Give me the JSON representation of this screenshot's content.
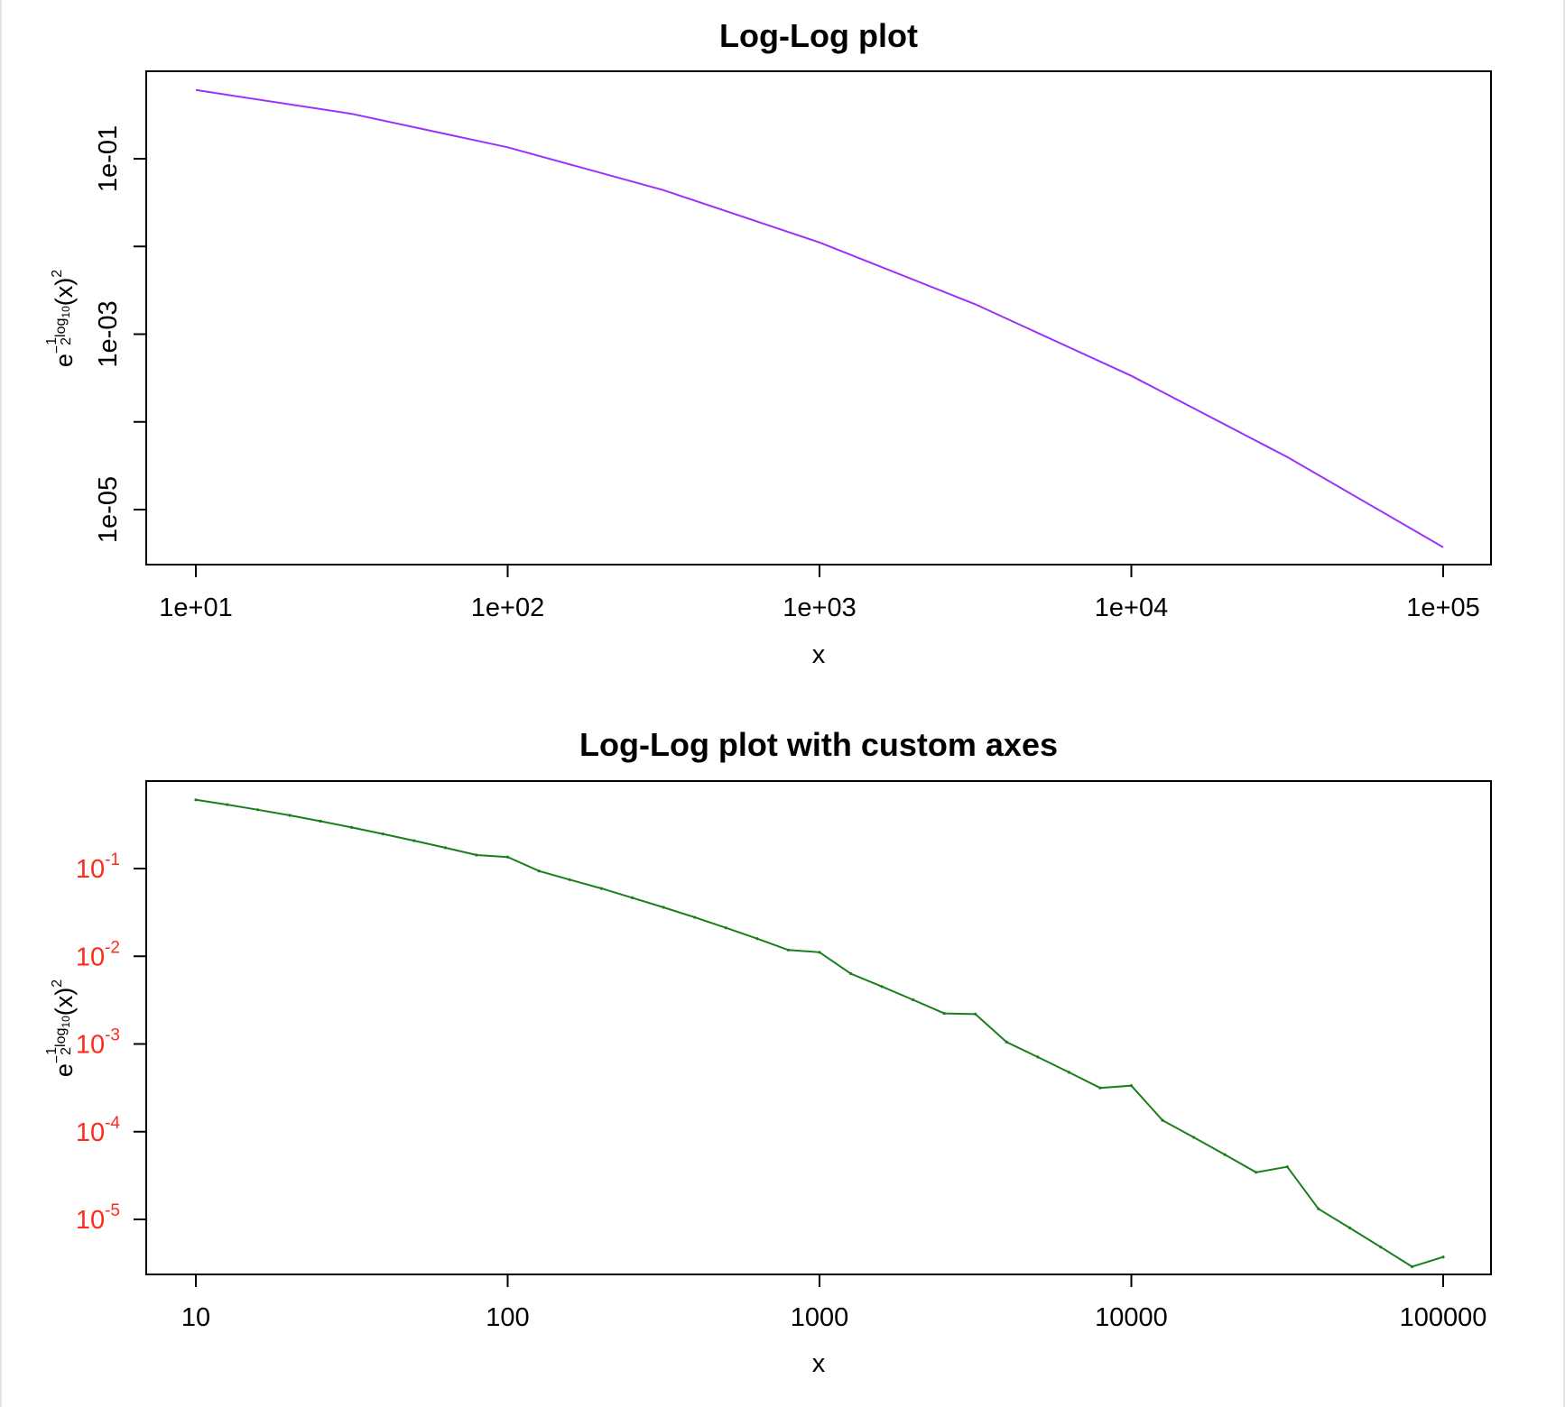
{
  "colors": {
    "top_series": "#9b30ff",
    "bottom_series": "#1a7f1a",
    "bottom_ytick": "#ff2a1a"
  },
  "chart_data": [
    {
      "type": "line",
      "title": "Log-Log plot",
      "xlabel": "x",
      "ylabel": {
        "base": "e",
        "minus": "−",
        "frac_num": "1",
        "frac_den": "2",
        "log": "log",
        "sub": "10",
        "arg": "(x)",
        "sup": "2"
      },
      "x_scale": "log",
      "y_scale": "log",
      "xlim": [
        10,
        100000
      ],
      "ylim": [
        2.5e-06,
        1
      ],
      "x_ticks": [
        {
          "value": 10,
          "label": "1e+01"
        },
        {
          "value": 100,
          "label": "1e+02"
        },
        {
          "value": 1000,
          "label": "1e+03"
        },
        {
          "value": 10000,
          "label": "1e+04"
        },
        {
          "value": 100000,
          "label": "1e+05"
        }
      ],
      "y_ticks": [
        {
          "value": 0.1,
          "label": "1e-01"
        },
        {
          "value": 0.01,
          "label": ""
        },
        {
          "value": 0.001,
          "label": "1e-03"
        },
        {
          "value": 0.0001,
          "label": ""
        },
        {
          "value": 1e-05,
          "label": "1e-05"
        }
      ],
      "series": [
        {
          "x": [
            10,
            31.6,
            100,
            316,
            1000,
            3162,
            10000,
            31623,
            100000
          ],
          "y": [
            0.607,
            0.325,
            0.135,
            0.0439,
            0.0111,
            0.00219,
            0.000335,
            3.98e-05,
            3.73e-06
          ]
        }
      ]
    },
    {
      "type": "line",
      "title": "Log-Log plot with custom axes",
      "xlabel": "x",
      "ylabel": {
        "base": "e",
        "minus": "−",
        "frac_num": "1",
        "frac_den": "2",
        "log": "log",
        "sub": "10",
        "arg": "(x)",
        "sup": "2"
      },
      "x_scale": "log",
      "y_scale": "log",
      "xlim": [
        10,
        100000
      ],
      "ylim": [
        2.5e-06,
        1
      ],
      "x_ticks": [
        {
          "value": 10,
          "label": "10"
        },
        {
          "value": 100,
          "label": "100"
        },
        {
          "value": 1000,
          "label": "1000"
        },
        {
          "value": 10000,
          "label": "10000"
        },
        {
          "value": 100000,
          "label": "100000"
        }
      ],
      "y_ticks": [
        {
          "value": 0.1,
          "base": "10",
          "exp": "-1"
        },
        {
          "value": 0.01,
          "base": "10",
          "exp": "-2"
        },
        {
          "value": 0.001,
          "base": "10",
          "exp": "-3"
        },
        {
          "value": 0.0001,
          "base": "10",
          "exp": "-4"
        },
        {
          "value": 1e-05,
          "base": "10",
          "exp": "-5"
        }
      ],
      "point_markers": true,
      "series": [
        {
          "x": [
            10,
            12.6,
            15.8,
            20,
            25.1,
            31.6,
            39.8,
            50.1,
            63.1,
            79.4,
            100,
            126,
            158,
            200,
            251,
            316,
            398,
            501,
            631,
            794,
            1000,
            1259,
            1585,
            1995,
            2512,
            3162,
            3981,
            5012,
            6310,
            7943,
            10000,
            12589,
            15849,
            19953,
            25119,
            31623,
            39811,
            50119,
            63096,
            79433,
            100000
          ],
          "y": [
            0.607,
            0.5357,
            0.4677,
            0.4045,
            0.3467,
            0.2946,
            0.2484,
            0.2079,
            0.1729,
            0.1425,
            0.1353,
            0.0937,
            0.0748,
            0.0592,
            0.0464,
            0.0361,
            0.0278,
            0.0211,
            0.0159,
            0.0118,
            0.0111,
            0.00634,
            0.00452,
            0.00319,
            0.00223,
            0.00219,
            0.00105,
            0.000709,
            0.000475,
            0.000316,
            0.000335,
            0.000135,
            8.63e-05,
            5.47e-05,
            3.44e-05,
            3.98e-05,
            1.32e-05,
            8.01e-06,
            4.83e-06,
            2.89e-06,
            3.73e-06
          ]
        }
      ]
    }
  ]
}
